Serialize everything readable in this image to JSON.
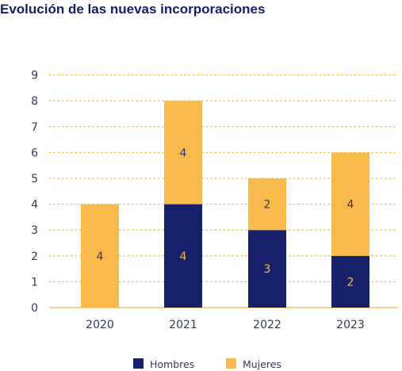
{
  "title": "Evolución de las nuevas incorporaciones",
  "chart_data": {
    "type": "bar",
    "stacked": true,
    "categories": [
      "2020",
      "2021",
      "2022",
      "2023"
    ],
    "series": [
      {
        "name": "Hombres",
        "values": [
          0,
          4,
          3,
          2
        ],
        "color": "#16206b",
        "label_color": "#f5bb4a"
      },
      {
        "name": "Mujeres",
        "values": [
          4,
          4,
          2,
          4
        ],
        "color": "#f8bb4b",
        "label_color": "#333a5c"
      }
    ],
    "yticks": [
      0,
      1,
      2,
      3,
      4,
      5,
      6,
      7,
      8,
      9
    ],
    "ylim": [
      0,
      9
    ],
    "grid": true,
    "legend_position": "bottom-center",
    "axis_color": "#f8bb4b",
    "tick_color": "#333a5c"
  }
}
